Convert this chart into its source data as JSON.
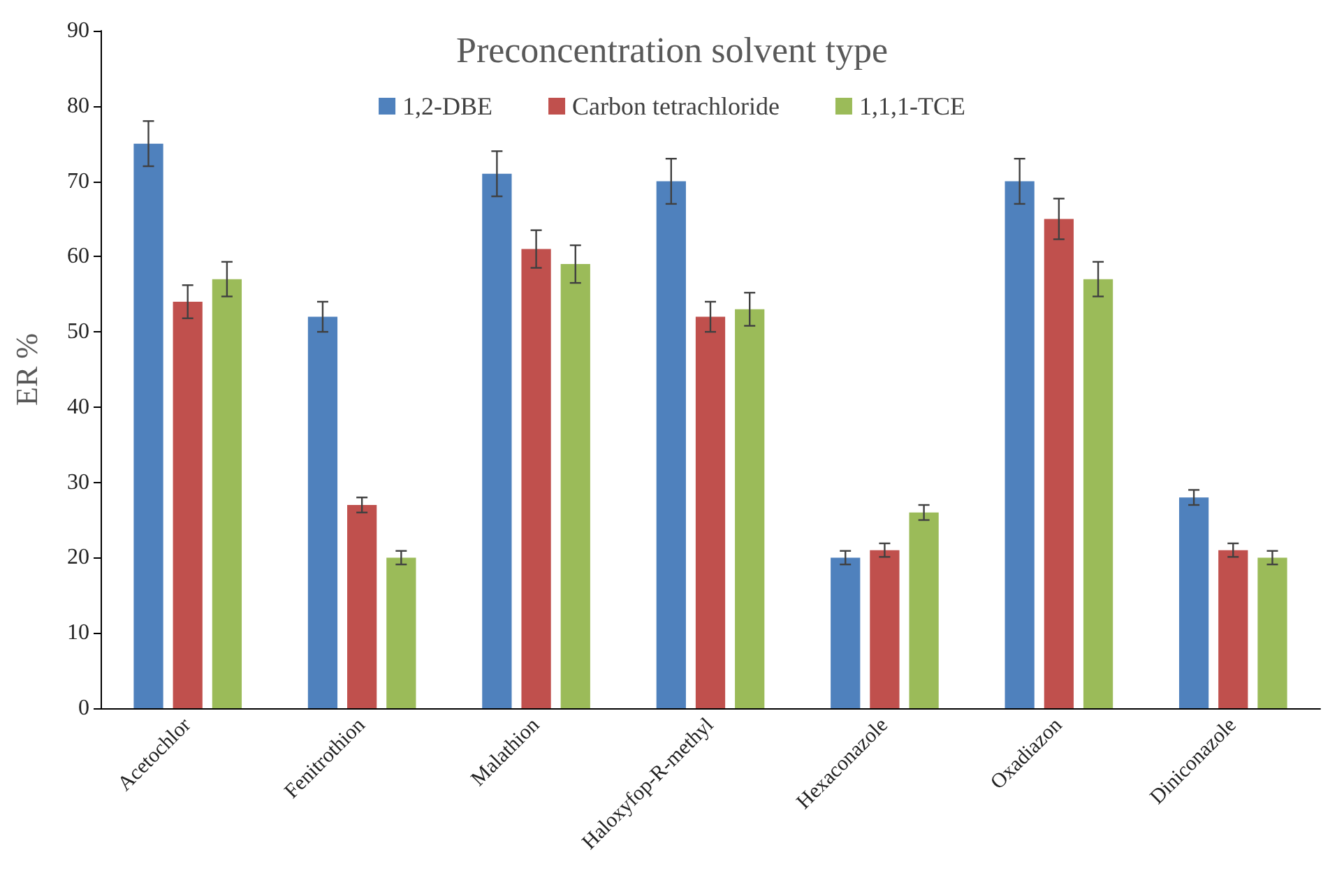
{
  "chart_data": {
    "type": "bar",
    "title": "Preconcentration solvent type",
    "ylabel": "ER %",
    "categories": [
      "Acetochlor",
      "Fenitrothion",
      "Malathion",
      "Haloxyfop-R-methyl",
      "Hexaconazole",
      "Oxadiazon",
      "Diniconazole"
    ],
    "series": [
      {
        "name": "1,2-DBE",
        "color": "#4f81bd",
        "values": [
          75,
          52,
          71,
          70,
          20,
          70,
          28
        ],
        "errors": [
          3,
          2,
          3,
          3,
          0.9,
          3,
          1
        ]
      },
      {
        "name": "Carbon tetrachloride",
        "color": "#c0504d",
        "values": [
          54,
          27,
          61,
          52,
          21,
          65,
          21
        ],
        "errors": [
          2.2,
          1,
          2.5,
          2,
          0.9,
          2.7,
          0.9
        ]
      },
      {
        "name": "1,1,1-TCE",
        "color": "#9bbb59",
        "values": [
          57,
          20,
          59,
          53,
          26,
          57,
          20
        ],
        "errors": [
          2.3,
          0.9,
          2.5,
          2.2,
          1,
          2.3,
          0.9
        ]
      }
    ],
    "ylim": [
      0,
      90
    ],
    "yticks": [
      0,
      10,
      20,
      30,
      40,
      50,
      60,
      70,
      80,
      90
    ],
    "grid": false,
    "legend": "top"
  }
}
